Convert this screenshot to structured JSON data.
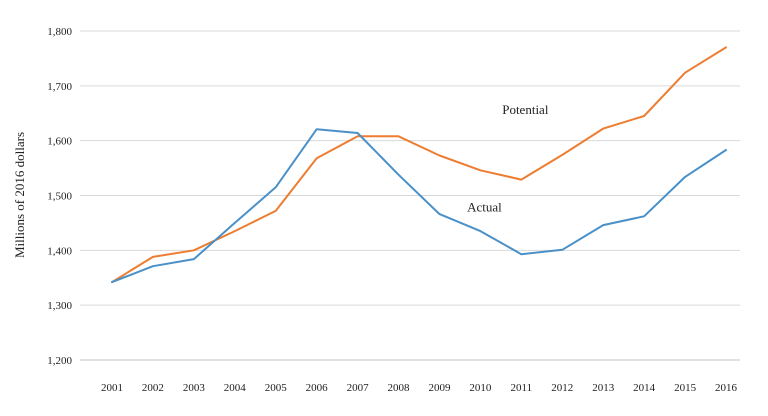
{
  "chart_data": {
    "type": "line",
    "title": "",
    "xlabel": "",
    "ylabel": "Millions of 2016 dollars",
    "x": [
      "2001",
      "2002",
      "2003",
      "2004",
      "2005",
      "2006",
      "2007",
      "2008",
      "2009",
      "2010",
      "2011",
      "2012",
      "2013",
      "2014",
      "2015",
      "2016"
    ],
    "ylim": [
      1200,
      1800
    ],
    "yticks": [
      1200,
      1300,
      1400,
      1500,
      1600,
      1700,
      1800
    ],
    "ytick_labels": [
      "1,200",
      "1,300",
      "1,400",
      "1,500",
      "1,600",
      "1,700",
      "1,800"
    ],
    "grid": true,
    "legend": "none",
    "series": [
      {
        "name": "Potential",
        "color": "#ED7D31",
        "values": [
          1342,
          1388,
          1400,
          1435,
          1472,
          1568,
          1608,
          1608,
          1573,
          1546,
          1529,
          1574,
          1622,
          1645,
          1724,
          1770
        ]
      },
      {
        "name": "Actual",
        "color": "#4A90C8",
        "values": [
          1342,
          1371,
          1384,
          1450,
          1515,
          1621,
          1614,
          1538,
          1466,
          1435,
          1393,
          1401,
          1446,
          1462,
          1534,
          1583
        ]
      }
    ],
    "annotations": [
      {
        "text": "Potential",
        "series": "Potential",
        "x": "2011",
        "y": 1656
      },
      {
        "text": "Actual",
        "series": "Actual",
        "x": "2010",
        "y": 1478
      }
    ]
  }
}
